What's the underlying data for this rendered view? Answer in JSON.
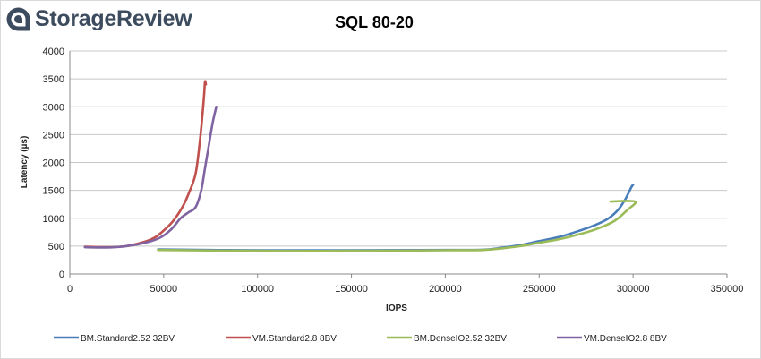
{
  "brand": {
    "name": "StorageReview",
    "logo_icon": "storagereview-logo-icon"
  },
  "chart_data": {
    "type": "line",
    "title": "SQL 80-20",
    "xlabel": "IOPS",
    "ylabel": "Latency (µs)",
    "xlim": [
      0,
      350000
    ],
    "ylim": [
      0,
      4000
    ],
    "xticks": [
      0,
      50000,
      100000,
      150000,
      200000,
      250000,
      300000,
      350000
    ],
    "xtick_labels": [
      "0",
      "50000",
      "100000",
      "150000",
      "200000",
      "250000",
      "300000",
      "350000"
    ],
    "yticks": [
      0,
      500,
      1000,
      1500,
      2000,
      2500,
      3000,
      3500,
      4000
    ],
    "ytick_labels": [
      "0",
      "500",
      "1000",
      "1500",
      "2000",
      "2500",
      "3000",
      "3500",
      "4000"
    ],
    "grid": "horizontal",
    "legend_position": "bottom",
    "series": [
      {
        "name": "BM.Standard2.52 32BV",
        "color": "#4a7ebb",
        "points": [
          [
            47000,
            440
          ],
          [
            100000,
            425
          ],
          [
            150000,
            425
          ],
          [
            200000,
            430
          ],
          [
            220000,
            435
          ],
          [
            230000,
            470
          ],
          [
            240000,
            520
          ],
          [
            250000,
            590
          ],
          [
            260000,
            660
          ],
          [
            270000,
            760
          ],
          [
            280000,
            880
          ],
          [
            287000,
            1000
          ],
          [
            292000,
            1150
          ],
          [
            296000,
            1350
          ],
          [
            299000,
            1550
          ],
          [
            300000,
            1600
          ]
        ]
      },
      {
        "name": "VM.Standard2.8 8BV",
        "color": "#c0504d",
        "points": [
          [
            8000,
            490
          ],
          [
            20000,
            480
          ],
          [
            30000,
            500
          ],
          [
            40000,
            580
          ],
          [
            45000,
            650
          ],
          [
            50000,
            780
          ],
          [
            55000,
            950
          ],
          [
            60000,
            1200
          ],
          [
            64000,
            1500
          ],
          [
            67000,
            1800
          ],
          [
            69000,
            2300
          ],
          [
            70500,
            2800
          ],
          [
            71500,
            3200
          ],
          [
            72000,
            3450
          ],
          [
            72500,
            3400
          ]
        ]
      },
      {
        "name": "BM.DenseIO2.52 32BV",
        "color": "#9bbb59",
        "points": [
          [
            47000,
            430
          ],
          [
            100000,
            415
          ],
          [
            150000,
            415
          ],
          [
            200000,
            425
          ],
          [
            220000,
            430
          ],
          [
            230000,
            460
          ],
          [
            240000,
            500
          ],
          [
            250000,
            560
          ],
          [
            260000,
            620
          ],
          [
            270000,
            700
          ],
          [
            280000,
            800
          ],
          [
            290000,
            950
          ],
          [
            297000,
            1150
          ],
          [
            301000,
            1300
          ],
          [
            288000,
            1300
          ]
        ]
      },
      {
        "name": "VM.DenseIO2.8 8BV",
        "color": "#8064a2",
        "points": [
          [
            8000,
            480
          ],
          [
            20000,
            475
          ],
          [
            30000,
            500
          ],
          [
            40000,
            560
          ],
          [
            48000,
            650
          ],
          [
            54000,
            800
          ],
          [
            59000,
            1000
          ],
          [
            63000,
            1100
          ],
          [
            67000,
            1200
          ],
          [
            70000,
            1500
          ],
          [
            72000,
            1900
          ],
          [
            74000,
            2300
          ],
          [
            76000,
            2700
          ],
          [
            78000,
            3000
          ]
        ]
      }
    ]
  }
}
